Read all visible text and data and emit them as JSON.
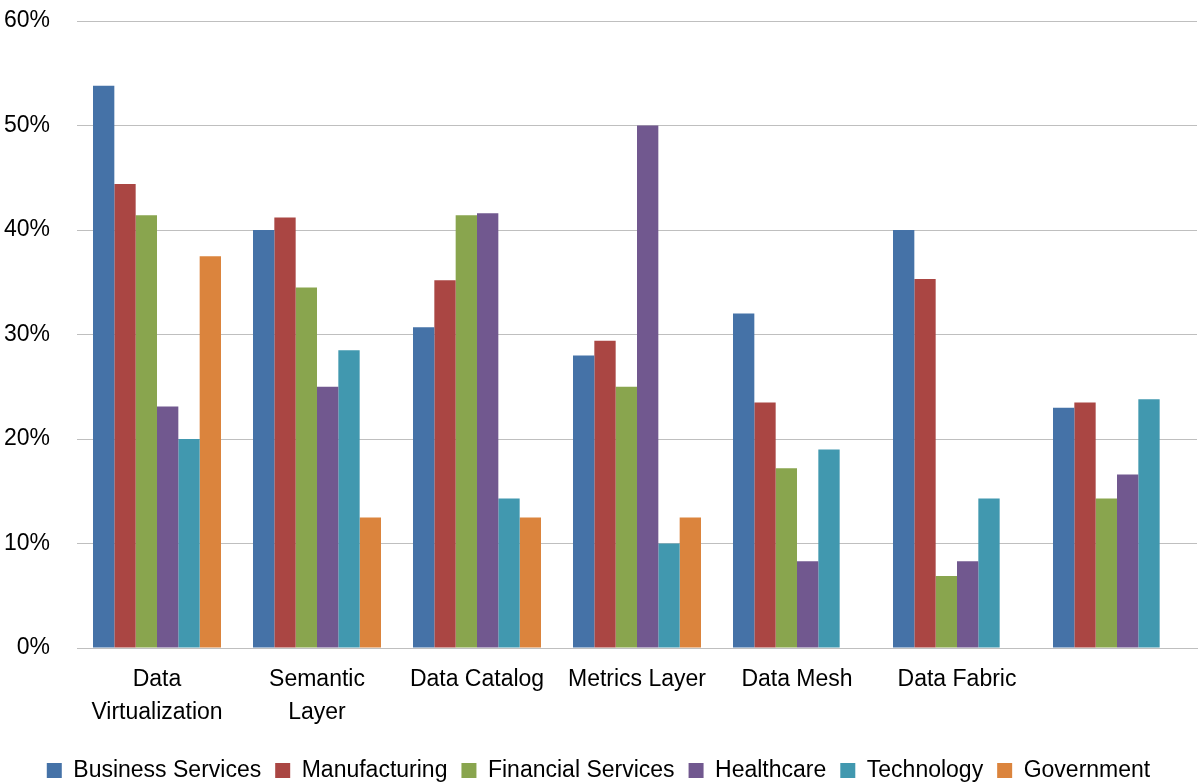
{
  "chart_data": {
    "type": "bar",
    "categories": [
      "Data Virtualization",
      "Semantic Layer",
      "Data Catalog",
      "Metrics Layer",
      "Data Mesh",
      "Data Fabric",
      null
    ],
    "series": [
      {
        "name": "Business Services",
        "color": "#4572a7",
        "values": [
          53.8,
          40,
          30.7,
          28,
          32,
          40,
          23
        ]
      },
      {
        "name": "Manufacturing",
        "color": "#aa4643",
        "values": [
          44.4,
          41.2,
          35.2,
          29.4,
          23.5,
          35.3,
          23.5
        ]
      },
      {
        "name": "Financial Services",
        "color": "#89a54e",
        "values": [
          41.4,
          34.5,
          41.4,
          25,
          17.2,
          6.9,
          14.3
        ]
      },
      {
        "name": "Healthcare",
        "color": "#71588f",
        "values": [
          23.1,
          25,
          41.6,
          50,
          8.3,
          8.3,
          16.6
        ]
      },
      {
        "name": "Technology",
        "color": "#4198af",
        "values": [
          20,
          28.5,
          14.3,
          10,
          19,
          14.3,
          23.8
        ]
      },
      {
        "name": "Government",
        "color": "#db843d",
        "values": [
          37.5,
          12.5,
          12.5,
          12.5,
          null,
          null,
          null
        ]
      }
    ],
    "ylim": [
      0,
      60
    ],
    "yticks": [
      {
        "value": 0,
        "label": "0%"
      },
      {
        "value": 10,
        "label": "10%"
      },
      {
        "value": 20,
        "label": "20%"
      },
      {
        "value": 30,
        "label": "30%"
      },
      {
        "value": 40,
        "label": "40%"
      },
      {
        "value": 50,
        "label": "50%"
      },
      {
        "value": 60,
        "label": "60%"
      }
    ],
    "grid": "y",
    "legend": "bottom"
  }
}
